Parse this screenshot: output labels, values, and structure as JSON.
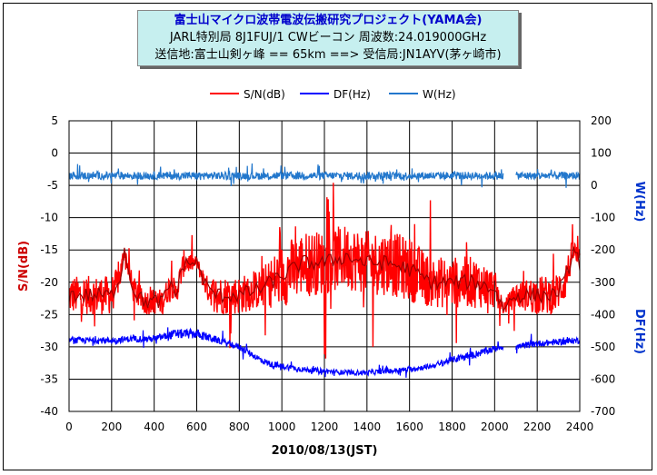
{
  "chart_data": {
    "type": "line",
    "title_lines": [
      "富士山マイクロ波帯電波伝搬研究プロジェクト(YAMA会)",
      "JARL特別局 8J1FUJ/1  CWビーコン 周波数:24.019000GHz",
      "送信地:富士山剣ヶ峰 == 65km ==> 受信局:JN1AYV(茅ヶ崎市)"
    ],
    "xlabel": "2010/08/13(JST)",
    "ylabel_left": "S/N(dB)",
    "ylabel_right_top": "W(Hz)",
    "ylabel_right_bottom": "DF(Hz)",
    "xlim": [
      0,
      2400
    ],
    "ylim_left": [
      -40,
      5
    ],
    "ylim_right": [
      -700,
      200
    ],
    "x_ticks": [
      "0",
      "200",
      "400",
      "600",
      "800",
      "1000",
      "1200",
      "1400",
      "1600",
      "1800",
      "2000",
      "2200",
      "2400"
    ],
    "y_ticks_left": [
      "5",
      "0",
      "-5",
      "-10",
      "-15",
      "-20",
      "-25",
      "-30",
      "-35",
      "-40"
    ],
    "y_ticks_right": [
      "200",
      "100",
      "0",
      "-100",
      "-200",
      "-300",
      "-400",
      "-500",
      "-600",
      "-700"
    ],
    "grid": true,
    "legend_position": "top-center",
    "gap": [
      2040,
      2100
    ],
    "series": [
      {
        "name": "S/N(dB)",
        "axis": "left",
        "color": "#ff0000",
        "trend_color": "#990000",
        "x": [
          0,
          100,
          200,
          240,
          260,
          300,
          350,
          400,
          440,
          480,
          500,
          540,
          600,
          650,
          700,
          800,
          900,
          950,
          1000,
          1100,
          1200,
          1300,
          1400,
          1500,
          1600,
          1700,
          1800,
          1900,
          2000,
          2040,
          2100,
          2200,
          2280,
          2330,
          2370,
          2400
        ],
        "mean": [
          -22,
          -22,
          -22,
          -19,
          -15,
          -21,
          -23,
          -23,
          -23,
          -20,
          -22,
          -17,
          -17,
          -21,
          -22,
          -22,
          -21,
          -20,
          -19,
          -17,
          -17,
          -16,
          -17,
          -17,
          -18,
          -20,
          -20,
          -20,
          -21,
          -24,
          -22,
          -22,
          -22,
          -20,
          -15,
          -17
        ],
        "spread": [
          3,
          3,
          3,
          2,
          1,
          2,
          2,
          2,
          2,
          2,
          2,
          2,
          1,
          2,
          3,
          3,
          3,
          4,
          5,
          5,
          5,
          5,
          5,
          5,
          5,
          4,
          4,
          4,
          3,
          1,
          2,
          3,
          3,
          3,
          2,
          2
        ]
      },
      {
        "name": "DF(Hz)",
        "axis": "right",
        "color": "#0000ff",
        "x": [
          0,
          100,
          200,
          300,
          400,
          500,
          600,
          700,
          800,
          850,
          900,
          950,
          1000,
          1100,
          1200,
          1300,
          1400,
          1500,
          1600,
          1700,
          1800,
          1900,
          2000,
          2040,
          2100,
          2200,
          2300,
          2400
        ],
        "mean": [
          -480,
          -480,
          -480,
          -475,
          -475,
          -460,
          -460,
          -480,
          -500,
          -520,
          -540,
          -555,
          -560,
          -570,
          -575,
          -580,
          -580,
          -575,
          -570,
          -560,
          -540,
          -525,
          -505,
          -500,
          -500,
          -490,
          -485,
          -480
        ],
        "spread": [
          10,
          10,
          10,
          10,
          10,
          15,
          15,
          10,
          10,
          10,
          10,
          10,
          10,
          8,
          8,
          8,
          8,
          8,
          8,
          8,
          10,
          12,
          10,
          8,
          10,
          10,
          10,
          10
        ]
      },
      {
        "name": "W(Hz)",
        "axis": "right",
        "color": "#2277cc",
        "x": [
          0,
          2040,
          2100,
          2400
        ],
        "mean": [
          30,
          30,
          30,
          30
        ],
        "spread": [
          12,
          12,
          12,
          12
        ]
      }
    ]
  }
}
